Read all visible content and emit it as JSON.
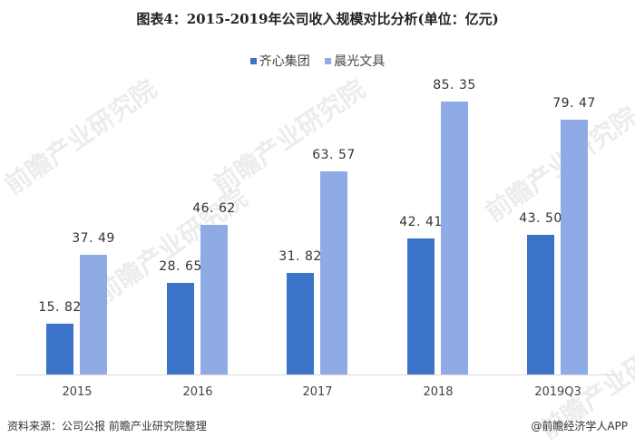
{
  "title": "图表4：2015-2019年公司收入规模对比分析(单位：亿元)",
  "legend": [
    {
      "label": "齐心集团",
      "color": "#3a73c8"
    },
    {
      "label": "晨光文具",
      "color": "#8eabe6"
    }
  ],
  "chart_data": {
    "type": "bar",
    "title": "图表4：2015-2019年公司收入规模对比分析(单位：亿元)",
    "xlabel": "",
    "ylabel": "亿元",
    "categories": [
      "2015",
      "2016",
      "2017",
      "2018",
      "2019Q3"
    ],
    "series": [
      {
        "name": "齐心集团",
        "color": "#3a73c8",
        "values": [
          15.82,
          28.65,
          31.82,
          42.41,
          43.5
        ],
        "labels": [
          "15.82",
          "28.65",
          "31.82",
          "42.41",
          "43.50"
        ]
      },
      {
        "name": "晨光文具",
        "color": "#8eabe6",
        "values": [
          37.49,
          46.62,
          63.57,
          85.35,
          79.47
        ],
        "labels": [
          "37.49",
          "46.62",
          "63.57",
          "85.35",
          "79.47"
        ]
      }
    ],
    "grid": false,
    "legend_position": "top",
    "ylim": [
      0,
      90
    ]
  },
  "footer": {
    "source": "资料来源：公司公报 前瞻产业研究院整理",
    "credit": "@前瞻经济学人APP"
  },
  "watermark": "前瞻产业研究院"
}
